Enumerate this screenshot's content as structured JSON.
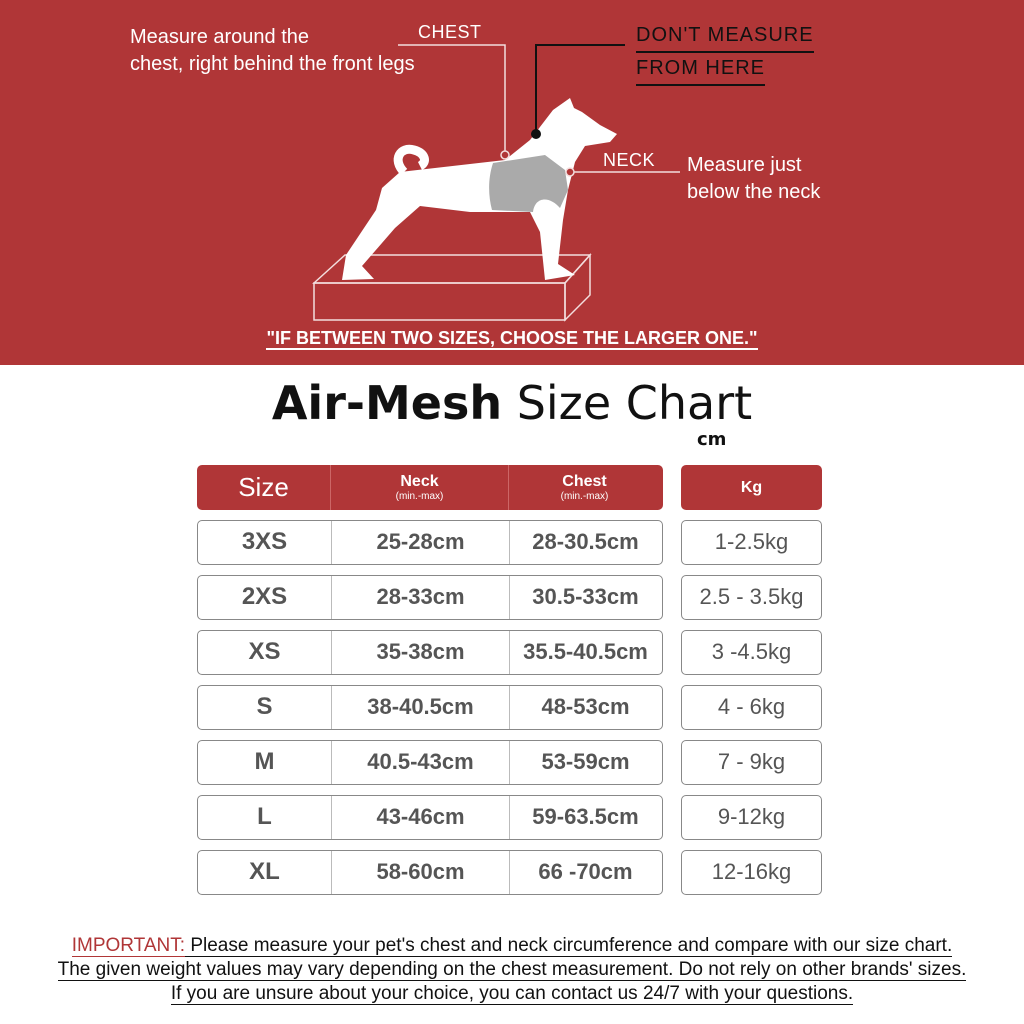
{
  "hero": {
    "chest_instruction_1": "Measure around the",
    "chest_instruction_2": "chest, right behind the front legs",
    "chest_label": "CHEST",
    "dont_1": "DON'T  MEASURE",
    "dont_2": "FROM HERE",
    "neck_label": "NECK",
    "neck_instruction_1": "Measure just",
    "neck_instruction_2": "below the neck",
    "quote": "\"IF BETWEEN TWO SIZES, CHOOSE THE LARGER ONE.\""
  },
  "title": {
    "bold": "Air-Mesh",
    "rest": " Size Chart",
    "unit": "cm"
  },
  "table": {
    "headers": {
      "size": "Size",
      "neck": "Neck",
      "neck_sub": "(min.-max)",
      "chest": "Chest",
      "chest_sub": "(min.-max)",
      "kg": "Kg"
    },
    "rows": [
      {
        "size": "3XS",
        "neck": "25-28cm",
        "chest": "28-30.5cm",
        "kg": "1-2.5kg"
      },
      {
        "size": "2XS",
        "neck": "28-33cm",
        "chest": "30.5-33cm",
        "kg": "2.5 - 3.5kg"
      },
      {
        "size": "XS",
        "neck": "35-38cm",
        "chest": "35.5-40.5cm",
        "kg": "3 -4.5kg"
      },
      {
        "size": "S",
        "neck": "38-40.5cm",
        "chest": "48-53cm",
        "kg": "4 - 6kg"
      },
      {
        "size": "M",
        "neck": "40.5-43cm",
        "chest": "53-59cm",
        "kg": "7 - 9kg"
      },
      {
        "size": "L",
        "neck": "43-46cm",
        "chest": "59-63.5cm",
        "kg": "9-12kg"
      },
      {
        "size": "XL",
        "neck": "58-60cm",
        "chest": "66 -70cm",
        "kg": "12-16kg"
      }
    ]
  },
  "note": {
    "important": "IMPORTANT:",
    "line1": " Please measure your pet's chest and neck circumference and compare with our size chart.",
    "line2": "The given weight values may vary depending on the chest measurement. Do not rely on other brands' sizes.",
    "line3": "If you are unsure about your choice, you can contact us 24/7 with your questions."
  },
  "colors": {
    "brand_red": "#b03637"
  }
}
